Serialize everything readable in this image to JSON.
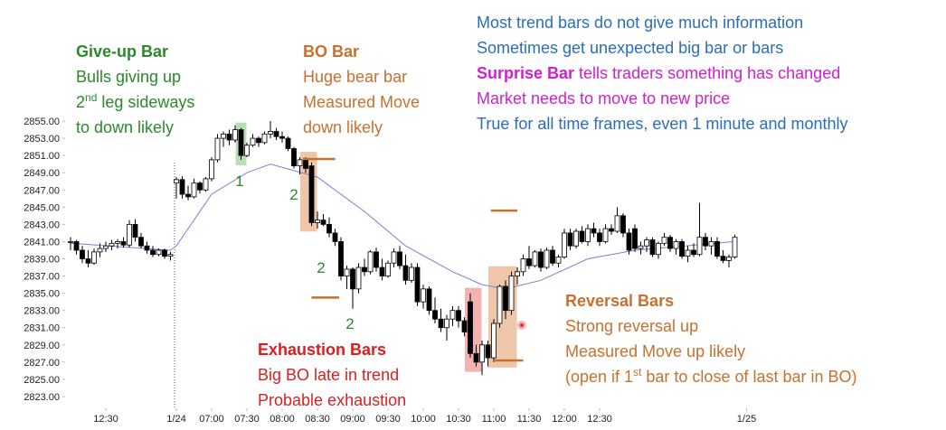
{
  "chart_data": {
    "type": "candlestick",
    "ylim": [
      2822,
      2856
    ],
    "yticks": [
      {
        "value": 2823,
        "label": "2823.00"
      },
      {
        "value": 2825,
        "label": "2825.00"
      },
      {
        "value": 2827,
        "label": "2827.00"
      },
      {
        "value": 2829,
        "label": "2829.00"
      },
      {
        "value": 2831,
        "label": "2831.00"
      },
      {
        "value": 2833,
        "label": "2833.00"
      },
      {
        "value": 2835,
        "label": "2835.00"
      },
      {
        "value": 2837,
        "label": "2837.00"
      },
      {
        "value": 2839,
        "label": "2839.00"
      },
      {
        "value": 2841,
        "label": "2841.00"
      },
      {
        "value": 2843,
        "label": "2843.00"
      },
      {
        "value": 2845,
        "label": "2845.00"
      },
      {
        "value": 2847,
        "label": "2847.00"
      },
      {
        "value": 2849,
        "label": "2849.00"
      },
      {
        "value": 2851,
        "label": "2851.00"
      },
      {
        "value": 2853,
        "label": "2853.00"
      },
      {
        "value": 2855,
        "label": "2855.00"
      }
    ],
    "xticks": [
      {
        "value": 6,
        "label": "12:30"
      },
      {
        "value": 18,
        "label": "1/24"
      },
      {
        "value": 24,
        "label": "07:00"
      },
      {
        "value": 30,
        "label": "07:30"
      },
      {
        "value": 36,
        "label": "08:00"
      },
      {
        "value": 42,
        "label": "08:30"
      },
      {
        "value": 48,
        "label": "09:00"
      },
      {
        "value": 54,
        "label": "09:30"
      },
      {
        "value": 60,
        "label": "10:00"
      },
      {
        "value": 66,
        "label": "10:30"
      },
      {
        "value": 72,
        "label": "11:00"
      },
      {
        "value": 78,
        "label": "11:30"
      },
      {
        "value": 84,
        "label": "12:00"
      },
      {
        "value": 90,
        "label": "12:30"
      },
      {
        "value": 115,
        "label": "1/25"
      }
    ],
    "ohlc": [
      [
        2841,
        2841.5,
        2840,
        2841
      ],
      [
        2841,
        2841.2,
        2839.5,
        2840
      ],
      [
        2840,
        2840.5,
        2838.5,
        2839
      ],
      [
        2839,
        2840,
        2838,
        2838.5
      ],
      [
        2838.5,
        2840.2,
        2838.3,
        2839.8
      ],
      [
        2839.8,
        2840.8,
        2839.2,
        2840.2
      ],
      [
        2840.2,
        2841,
        2839.8,
        2840.5
      ],
      [
        2840.5,
        2841.2,
        2840,
        2840.8
      ],
      [
        2840.8,
        2841.3,
        2840.2,
        2841
      ],
      [
        2841,
        2841.5,
        2840.3,
        2840.6
      ],
      [
        2840.6,
        2843.5,
        2840.3,
        2843
      ],
      [
        2843,
        2843.6,
        2841,
        2841.5
      ],
      [
        2841.5,
        2842,
        2840.2,
        2840.5
      ],
      [
        2840.5,
        2841,
        2839.6,
        2840
      ],
      [
        2840,
        2840.5,
        2839.2,
        2839.5
      ],
      [
        2839.5,
        2840.2,
        2839.3,
        2840
      ],
      [
        2840,
        2840.2,
        2839,
        2839.3
      ],
      [
        2839.3,
        2839.8,
        2838.8,
        2839.5
      ],
      [
        2847.8,
        2848.5,
        2846,
        2848.2
      ],
      [
        2848.2,
        2848.6,
        2846,
        2846.5
      ],
      [
        2846.5,
        2847.5,
        2845.8,
        2846.2
      ],
      [
        2846.2,
        2848.3,
        2846,
        2847.8
      ],
      [
        2847.8,
        2848,
        2846.6,
        2847
      ],
      [
        2847,
        2848.5,
        2846.8,
        2848.3
      ],
      [
        2848.3,
        2850.8,
        2848,
        2850.5
      ],
      [
        2850.5,
        2853.5,
        2850.2,
        2853
      ],
      [
        2853,
        2853.8,
        2852,
        2853.5
      ],
      [
        2853.5,
        2854,
        2852.2,
        2852.8
      ],
      [
        2852.8,
        2854.5,
        2852.5,
        2854
      ],
      [
        2854,
        2854.2,
        2850.5,
        2851
      ],
      [
        2851,
        2852.5,
        2850.8,
        2852.2
      ],
      [
        2852.2,
        2853.5,
        2852,
        2853
      ],
      [
        2853,
        2853.2,
        2852,
        2852.5
      ],
      [
        2852.5,
        2853.8,
        2852.3,
        2853.5
      ],
      [
        2853.5,
        2855,
        2853,
        2853.8
      ],
      [
        2853.8,
        2854.2,
        2852.8,
        2853.2
      ],
      [
        2853.2,
        2853.8,
        2852.5,
        2853
      ],
      [
        2853,
        2853.2,
        2851.5,
        2851.8
      ],
      [
        2851.8,
        2852,
        2849.5,
        2849.8
      ],
      [
        2849.8,
        2850.8,
        2848.8,
        2850.5
      ],
      [
        2850.5,
        2850.8,
        2849,
        2849.5
      ],
      [
        2849.8,
        2850.2,
        2842.8,
        2843.2
      ],
      [
        2843.2,
        2844.5,
        2842.5,
        2843.5
      ],
      [
        2843.5,
        2844.2,
        2842.8,
        2843
      ],
      [
        2843,
        2843.8,
        2841.5,
        2842
      ],
      [
        2842,
        2842.5,
        2840.5,
        2841
      ],
      [
        2841,
        2841.5,
        2836.5,
        2837
      ],
      [
        2837,
        2838.2,
        2835.5,
        2837.8
      ],
      [
        2837.8,
        2838,
        2833.2,
        2835.5
      ],
      [
        2835.5,
        2838.5,
        2835,
        2838
      ],
      [
        2838,
        2839,
        2837,
        2837.5
      ],
      [
        2837.5,
        2840,
        2837.2,
        2839.8
      ],
      [
        2839.8,
        2840.3,
        2837.5,
        2838
      ],
      [
        2838,
        2839,
        2836.5,
        2837
      ],
      [
        2837,
        2838.8,
        2836.8,
        2838.5
      ],
      [
        2838.5,
        2840.2,
        2838,
        2839.8
      ],
      [
        2839.8,
        2840.5,
        2837.8,
        2838.2
      ],
      [
        2838.2,
        2839.5,
        2836,
        2836.5
      ],
      [
        2836.5,
        2838.5,
        2836.2,
        2838
      ],
      [
        2838,
        2838.5,
        2833.5,
        2834
      ],
      [
        2834,
        2836,
        2833.2,
        2835.5
      ],
      [
        2835.5,
        2835.8,
        2832.5,
        2833
      ],
      [
        2833,
        2834.5,
        2831.5,
        2832
      ],
      [
        2832,
        2833.2,
        2830.5,
        2831
      ],
      [
        2831,
        2832.5,
        2829.5,
        2832
      ],
      [
        2832,
        2833.5,
        2831.2,
        2833
      ],
      [
        2833,
        2833.5,
        2831,
        2831.8
      ],
      [
        2831.8,
        2832.2,
        2830,
        2830.5
      ],
      [
        2834,
        2835,
        2827.5,
        2828
      ],
      [
        2828,
        2829,
        2826.5,
        2827
      ],
      [
        2827,
        2829.5,
        2825.5,
        2829
      ],
      [
        2829,
        2829.5,
        2826.5,
        2827.5
      ],
      [
        2827.5,
        2832,
        2827,
        2831.5
      ],
      [
        2831.5,
        2836,
        2831,
        2835.8
      ],
      [
        2835.8,
        2836.5,
        2832,
        2833
      ],
      [
        2833,
        2837.5,
        2832.5,
        2837
      ],
      [
        2837,
        2838,
        2836,
        2837.5
      ],
      [
        2837.5,
        2839.5,
        2837,
        2839
      ],
      [
        2839,
        2840.5,
        2837.8,
        2838.2
      ],
      [
        2838.2,
        2840,
        2838,
        2839.8
      ],
      [
        2839.8,
        2840.2,
        2837.5,
        2838
      ],
      [
        2838,
        2840.3,
        2837.8,
        2840
      ],
      [
        2840,
        2840.5,
        2838.2,
        2838.5
      ],
      [
        2838.5,
        2839.5,
        2838,
        2839.2
      ],
      [
        2839.2,
        2842.5,
        2839,
        2842
      ],
      [
        2842,
        2842.5,
        2840,
        2840.5
      ],
      [
        2840.5,
        2842.5,
        2840.2,
        2842.2
      ],
      [
        2842.2,
        2842.8,
        2840.8,
        2841
      ],
      [
        2841,
        2843,
        2840.5,
        2842.5
      ],
      [
        2842.5,
        2843.2,
        2841.5,
        2842
      ],
      [
        2842,
        2842.5,
        2840.5,
        2841
      ],
      [
        2841,
        2843,
        2840.8,
        2842.5
      ],
      [
        2842.5,
        2843,
        2841.8,
        2842.2
      ],
      [
        2842.2,
        2845,
        2842,
        2844
      ],
      [
        2844,
        2844.3,
        2841.5,
        2842
      ],
      [
        2842,
        2842.5,
        2839.5,
        2840
      ],
      [
        2842.5,
        2843,
        2839.8,
        2840.2
      ],
      [
        2840.2,
        2841,
        2839.5,
        2840.5
      ],
      [
        2840.5,
        2841.5,
        2839.8,
        2841.2
      ],
      [
        2841.2,
        2841.5,
        2839.2,
        2839.5
      ],
      [
        2839.5,
        2841,
        2839,
        2840.8
      ],
      [
        2840.8,
        2842,
        2840.5,
        2841.5
      ],
      [
        2841.5,
        2841.8,
        2839.8,
        2840.2
      ],
      [
        2840.2,
        2841.3,
        2839.5,
        2841
      ],
      [
        2841,
        2841.3,
        2839,
        2839.3
      ],
      [
        2839.3,
        2840.5,
        2838.6,
        2840
      ],
      [
        2840,
        2840.8,
        2839.2,
        2839.5
      ],
      [
        2839.5,
        2845.5,
        2839.3,
        2841.5
      ],
      [
        2841.5,
        2842,
        2840,
        2840.5
      ],
      [
        2840.5,
        2841.5,
        2839.5,
        2841
      ],
      [
        2841,
        2841.5,
        2839,
        2839.3
      ],
      [
        2839.3,
        2840,
        2838.5,
        2838.8
      ],
      [
        2838.8,
        2839.5,
        2838,
        2839.2
      ],
      [
        2839.2,
        2841.8,
        2839,
        2841.5
      ]
    ],
    "ema": {
      "color": "#7b7fd6",
      "x": [
        0,
        17,
        18,
        24,
        30,
        34,
        42,
        50,
        57,
        65,
        70,
        74,
        80,
        88,
        96,
        113
      ],
      "values": [
        2840.8,
        2840,
        2840.5,
        2846.5,
        2849,
        2850,
        2848.5,
        2844.5,
        2840.5,
        2837.5,
        2836,
        2835.5,
        2836.5,
        2839,
        2840,
        2841
      ]
    },
    "highlights": [
      {
        "from": 29,
        "to": 29,
        "color": "#9fd49f"
      },
      {
        "from": 40,
        "to": 41,
        "color": "#e8b48e"
      },
      {
        "from": 68,
        "to": 69,
        "color": "#f09a9a"
      },
      {
        "from": 72,
        "to": 75,
        "color": "#e8b48e"
      }
    ],
    "levels": [
      {
        "value": 2850.6,
        "from": 39.5,
        "to": 45
      },
      {
        "value": 2834.5,
        "from": 41,
        "to": 45.7
      },
      {
        "value": 2844.6,
        "from": 71.5,
        "to": 76
      },
      {
        "value": 2827.2,
        "from": 72,
        "to": 77
      }
    ],
    "level_color": "#c8702e",
    "bar_labels": [
      "1",
      "2",
      "2",
      "2"
    ],
    "bar_label_color": "#2a8a2a",
    "annotations": [
      {
        "color": "#2a6ebb",
        "lines": [
          [
            {
              "text": "Most trend bars do not give much information"
            }
          ],
          [
            {
              "text": "Sometimes get unexpected big bar or bars"
            }
          ],
          [
            {
              "text": "Surprise Bar",
              "bold": true,
              "color": "#d21ed2"
            },
            {
              "text": " tells traders something has changed",
              "color": "#d21ed2"
            }
          ],
          [
            {
              "text": "Market needs to move to new price",
              "color": "#d21ed2"
            }
          ],
          [
            {
              "text": "True for all time frames, even 1 minute and monthly"
            }
          ]
        ]
      },
      {
        "color": "#2a8a2a",
        "lines": [
          [
            {
              "text": "Give-up Bar",
              "bold": true
            }
          ],
          [
            {
              "text": "Bulls giving up"
            }
          ],
          [
            {
              "text": "2"
            },
            {
              "text": "nd",
              "sup": true
            },
            {
              "text": " leg sideways"
            }
          ],
          [
            {
              "text": "to down likely"
            }
          ]
        ]
      },
      {
        "color": "#c8702e",
        "lines": [
          [
            {
              "text": "BO Bar",
              "bold": true
            }
          ],
          [
            {
              "text": "Huge bear bar"
            }
          ],
          [
            {
              "text": "Measured Move"
            }
          ],
          [
            {
              "text": "down likely"
            }
          ]
        ]
      },
      {
        "color": "#d92020",
        "lines": [
          [
            {
              "text": "Exhaustion Bars",
              "bold": true
            }
          ],
          [
            {
              "text": "Big BO late in trend"
            }
          ],
          [
            {
              "text": "Probable exhaustion"
            }
          ]
        ]
      },
      {
        "color": "#c8702e",
        "lines": [
          [
            {
              "text": "Reversal Bars",
              "bold": true
            }
          ],
          [
            {
              "text": "Strong reversal up"
            }
          ],
          [
            {
              "text": "Measured Move up likely"
            }
          ],
          [
            {
              "text": "(open if 1"
            },
            {
              "text": "st",
              "sup": true
            },
            {
              "text": " bar to close of last bar in BO)"
            }
          ]
        ]
      }
    ]
  }
}
